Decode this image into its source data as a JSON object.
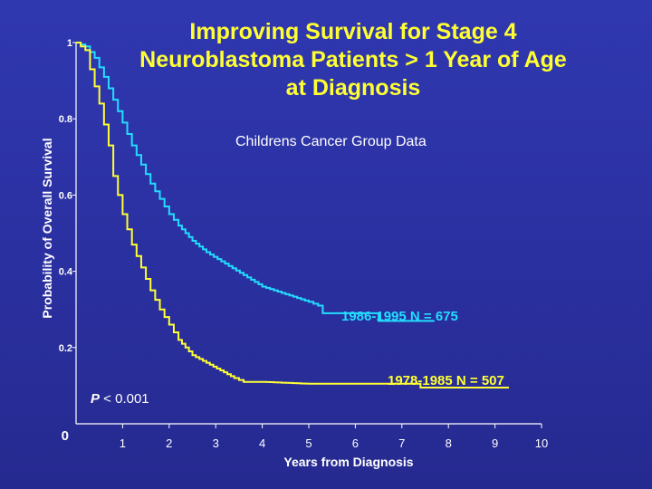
{
  "title_lines": [
    "Improving Survival for Stage 4",
    "Neuroblastoma Patients > 1 Year of Age",
    "at Diagnosis"
  ],
  "subtitle": "Childrens Cancer Group Data",
  "pvalue": {
    "symbol": "P",
    "text": " < 0.001"
  },
  "colors": {
    "background": "#2a2f9e",
    "title": "#ffff33",
    "axis": "#ffffff",
    "series_1986": "#22ddff",
    "series_1978": "#ffff33"
  },
  "chart_data": {
    "type": "line",
    "title": "Improving Survival for Stage 4 Neuroblastoma Patients > 1 Year of Age at Diagnosis",
    "xlabel": "Years from Diagnosis",
    "ylabel": "Probability of Overall Survival",
    "xlim": [
      0,
      10
    ],
    "ylim": [
      0,
      1
    ],
    "xticks": [
      "1",
      "2",
      "3",
      "4",
      "5",
      "6",
      "7",
      "8",
      "9",
      "10"
    ],
    "yticks": [
      {
        "value": 0,
        "label": "0"
      },
      {
        "value": 0.2,
        "label": "0.2"
      },
      {
        "value": 0.4,
        "label": "0.4"
      },
      {
        "value": 0.6,
        "label": "0.6"
      },
      {
        "value": 0.8,
        "label": "0.8"
      },
      {
        "value": 1,
        "label": "1"
      }
    ],
    "grid": false,
    "series": [
      {
        "name": "1986-1995  N = 675",
        "color": "#22ddff",
        "points": [
          [
            0,
            1
          ],
          [
            0.2,
            0.99
          ],
          [
            0.4,
            0.96
          ],
          [
            0.6,
            0.91
          ],
          [
            0.8,
            0.85
          ],
          [
            1.0,
            0.79
          ],
          [
            1.2,
            0.73
          ],
          [
            1.4,
            0.68
          ],
          [
            1.6,
            0.63
          ],
          [
            1.8,
            0.59
          ],
          [
            2.0,
            0.55
          ],
          [
            2.2,
            0.52
          ],
          [
            2.5,
            0.48
          ],
          [
            2.8,
            0.45
          ],
          [
            3.2,
            0.42
          ],
          [
            3.6,
            0.39
          ],
          [
            4.0,
            0.36
          ],
          [
            4.5,
            0.34
          ],
          [
            5.0,
            0.32
          ],
          [
            5.2,
            0.31
          ],
          [
            5.3,
            0.29
          ],
          [
            6.5,
            0.29
          ],
          [
            6.5,
            0.27
          ],
          [
            7.7,
            0.27
          ]
        ]
      },
      {
        "name": "1978-1985  N = 507",
        "color": "#ffff33",
        "points": [
          [
            0,
            1
          ],
          [
            0.2,
            0.98
          ],
          [
            0.3,
            0.93
          ],
          [
            0.5,
            0.84
          ],
          [
            0.7,
            0.73
          ],
          [
            0.8,
            0.65
          ],
          [
            1.0,
            0.55
          ],
          [
            1.2,
            0.47
          ],
          [
            1.4,
            0.41
          ],
          [
            1.6,
            0.35
          ],
          [
            1.8,
            0.3
          ],
          [
            2.0,
            0.26
          ],
          [
            2.2,
            0.22
          ],
          [
            2.5,
            0.18
          ],
          [
            2.8,
            0.16
          ],
          [
            3.1,
            0.14
          ],
          [
            3.4,
            0.12
          ],
          [
            3.6,
            0.11
          ],
          [
            4.0,
            0.11
          ],
          [
            5.0,
            0.105
          ],
          [
            7.4,
            0.105
          ],
          [
            7.4,
            0.095
          ],
          [
            9.3,
            0.095
          ]
        ]
      }
    ]
  }
}
